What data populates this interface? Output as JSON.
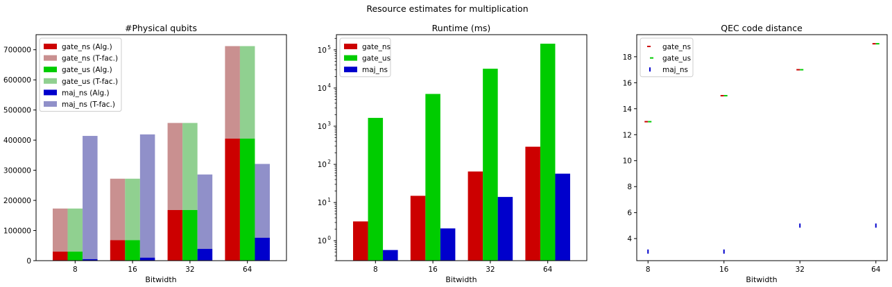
{
  "suptitle": "Resource estimates for multiplication",
  "colors": {
    "gate_ns": "#cc0000",
    "gate_ns_light": "#c99090",
    "gate_us": "#00cc00",
    "gate_us_light": "#90d090",
    "maj_ns": "#0000cc",
    "maj_ns_light": "#9090c9"
  },
  "chart_data": [
    {
      "type": "bar",
      "stacked": true,
      "title": "#Physical qubits",
      "xlabel": "Bitwidth",
      "ylabel": "",
      "categories": [
        "8",
        "16",
        "32",
        "64"
      ],
      "yticks": [
        0,
        100000,
        200000,
        300000,
        400000,
        500000,
        600000,
        700000
      ],
      "ytick_labels": [
        "0",
        "100000",
        "200000",
        "300000",
        "400000",
        "500000",
        "600000",
        "700000"
      ],
      "ylim": [
        0,
        750000
      ],
      "groups": [
        {
          "name": "gate_ns",
          "alg_label": "gate_ns (Alg.)",
          "tfac_label": "gate_ns (T-fac.)",
          "alg": [
            30000,
            68000,
            168000,
            405000
          ],
          "total": [
            173000,
            272000,
            457000,
            712000
          ]
        },
        {
          "name": "gate_us",
          "alg_label": "gate_us (Alg.)",
          "tfac_label": "gate_us (T-fac.)",
          "alg": [
            30000,
            68000,
            168000,
            405000
          ],
          "total": [
            173000,
            272000,
            457000,
            712000
          ]
        },
        {
          "name": "maj_ns",
          "alg_label": "maj_ns (Alg.)",
          "tfac_label": "maj_ns (T-fac.)",
          "alg": [
            5000,
            10000,
            39000,
            76000
          ],
          "total": [
            414000,
            419000,
            286000,
            321000
          ]
        }
      ],
      "legend": "top-left"
    },
    {
      "type": "bar",
      "title": "Runtime (ms)",
      "xlabel": "Bitwidth",
      "ylabel": "",
      "yscale": "log",
      "categories": [
        "8",
        "16",
        "32",
        "64"
      ],
      "yticks": [
        1,
        10,
        100,
        1000,
        10000,
        100000
      ],
      "ytick_labels": [
        [
          "10",
          "0"
        ],
        [
          "10",
          "1"
        ],
        [
          "10",
          "2"
        ],
        [
          "10",
          "3"
        ],
        [
          "10",
          "4"
        ],
        [
          "10",
          "5"
        ]
      ],
      "ylim": [
        0.3,
        250000
      ],
      "series": [
        {
          "name": "gate_ns",
          "values": [
            3.2,
            15,
            65,
            290
          ]
        },
        {
          "name": "gate_us",
          "values": [
            1650,
            7000,
            32000,
            145000
          ]
        },
        {
          "name": "maj_ns",
          "values": [
            0.57,
            2.1,
            14,
            57
          ]
        }
      ],
      "legend": "top-left"
    },
    {
      "type": "scatter",
      "title": "QEC code distance",
      "xlabel": "Bitwidth",
      "ylabel": "",
      "x": [
        8,
        16,
        32,
        64
      ],
      "xtick_labels": [
        "8",
        "16",
        "32",
        "64"
      ],
      "yticks": [
        4,
        6,
        8,
        10,
        12,
        14,
        16,
        18
      ],
      "ytick_labels": [
        "4",
        "6",
        "8",
        "10",
        "12",
        "14",
        "16",
        "18"
      ],
      "ylim": [
        2.3,
        19.7
      ],
      "series": [
        {
          "name": "gate_ns",
          "values": [
            13,
            15,
            17,
            19
          ]
        },
        {
          "name": "gate_us",
          "values": [
            13,
            15,
            17,
            19
          ]
        },
        {
          "name": "maj_ns",
          "values": [
            3,
            3,
            5,
            5
          ]
        }
      ],
      "legend": "top-left"
    }
  ]
}
